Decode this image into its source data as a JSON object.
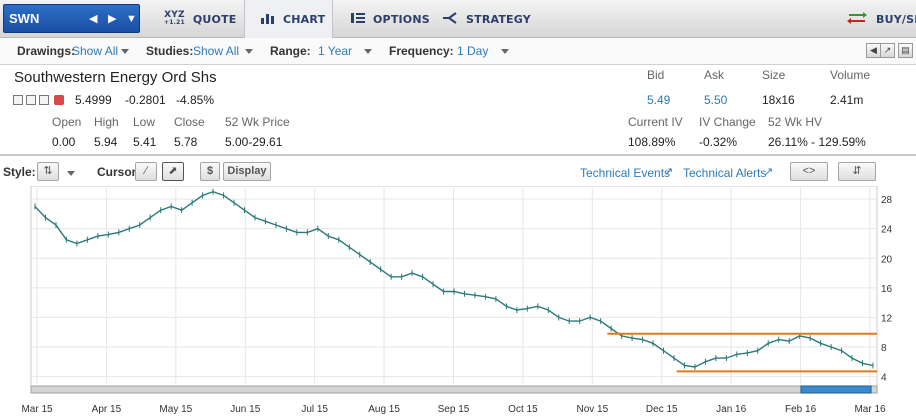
{
  "symbol": "SWN",
  "nav": {
    "tabs": [
      {
        "label": "QUOTE"
      },
      {
        "label": "CHART"
      },
      {
        "label": "OPTIONS"
      },
      {
        "label": "STRATEGY"
      }
    ],
    "xyz_icon_text": "XYZ",
    "xyz_icon_sub": "+1.21",
    "buysell": "BUY/SE"
  },
  "toolbar": {
    "drawings_label": "Drawings:",
    "drawings_value": "Show All",
    "studies_label": "Studies:",
    "studies_value": "Show All",
    "range_label": "Range:",
    "range_value": "1 Year",
    "frequency_label": "Frequency:",
    "frequency_value": "1 Day"
  },
  "quote": {
    "name": "Southwestern Energy Ord Shs",
    "last": "5.4999",
    "change": "-0.2801",
    "change_pct": "-4.85%",
    "bid_label": "Bid",
    "bid": "5.49",
    "ask_label": "Ask",
    "ask": "5.50",
    "size_label": "Size",
    "size": "18x16",
    "volume_label": "Volume",
    "volume": "2.41m",
    "open_label": "Open",
    "open": "0.00",
    "high_label": "High",
    "high": "5.94",
    "low_label": "Low",
    "low": "5.41",
    "close_label": "Close",
    "close": "5.78",
    "wk52_label": "52 Wk Price",
    "wk52": "5.00-29.61",
    "iv_label": "Current IV",
    "iv": "108.89%",
    "ivchg_label": "IV Change",
    "ivchg": "-0.32%",
    "hv_label": "52 Wk HV",
    "hv": "26.11% - 129.59%"
  },
  "chart_toolbar": {
    "style_label": "Style:",
    "cursor_label": "Cursor:",
    "display_label": "Display",
    "dollar": "$",
    "tech_events": "Technical Events",
    "tech_alerts": "Technical Alerts"
  },
  "chart_data": {
    "type": "line",
    "subtype": "ohlc",
    "x_ticks": [
      "Mar 15",
      "Apr 15",
      "May 15",
      "Jun 15",
      "Jul 15",
      "Aug 15",
      "Sep 15",
      "Oct 15",
      "Nov 15",
      "Dec 15",
      "Jan 16",
      "Feb 16",
      "Mar 16"
    ],
    "y_ticks": [
      4,
      8,
      12,
      16,
      20,
      24,
      28
    ],
    "ylim": [
      3,
      29.5
    ],
    "series": [
      {
        "values": [
          27,
          25.5,
          24.5,
          22.5,
          22,
          22.5,
          23,
          23.2,
          23.5,
          24,
          24.5,
          25.5,
          26.5,
          27,
          26.5,
          27.5,
          28.5,
          29,
          28.5,
          27.5,
          26.5,
          25.5,
          25,
          24.5,
          24,
          23.5,
          23.5,
          24,
          23,
          22.5,
          21.5,
          20.5,
          19.5,
          18.5,
          17.5,
          17.5,
          18,
          17.5,
          16.5,
          15.5,
          15.5,
          15.2,
          15,
          14.8,
          14.5,
          13.5,
          13,
          13.2,
          13.5,
          13,
          12,
          11.5,
          11.5,
          12,
          11.5,
          10.5,
          9.5,
          9.2,
          9,
          8.5,
          7.5,
          6.5,
          5.5,
          5.3,
          6,
          6.5,
          6.5,
          7,
          7.2,
          7.5,
          8.5,
          9,
          8.8,
          9.5,
          9.2,
          8.5,
          8,
          7.5,
          6.5,
          5.8,
          5.5
        ]
      }
    ],
    "horizontal_lines": [
      {
        "value": 9.8,
        "from": "Nov 15"
      },
      {
        "value": 4.7,
        "from": "Dec 15"
      }
    ],
    "grid": true,
    "line_color": "#2a7a7a",
    "annotation_color": "#e07a1a"
  }
}
